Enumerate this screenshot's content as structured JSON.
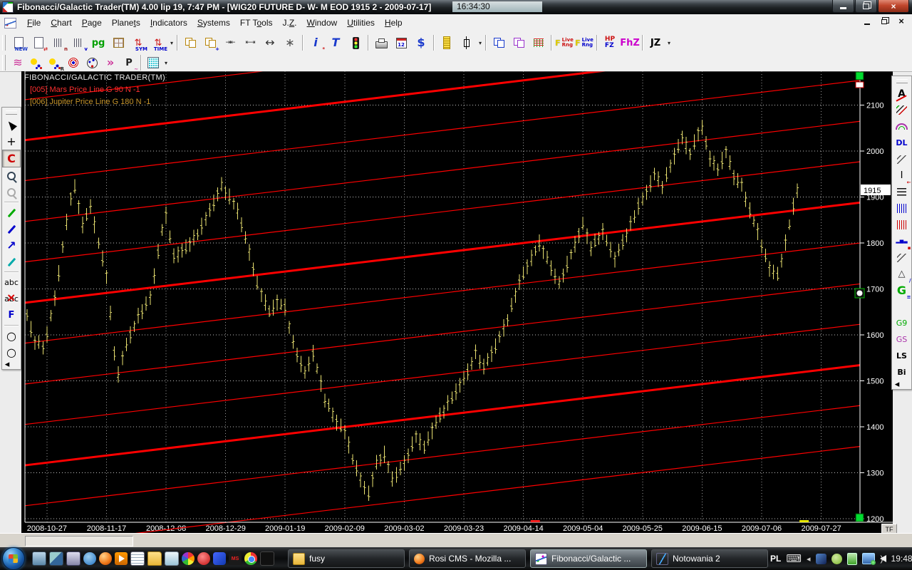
{
  "window": {
    "title": "Fibonacci/Galactic Trader(TM) 4.00 lip 19,  7:47 PM - [WIG20 FUTURE D- W- M EOD  1915     2 - 2009-07-17]",
    "clock": "16:34:30"
  },
  "menu": {
    "items": [
      {
        "name": "file",
        "pre": "",
        "u": "F",
        "post": "ile"
      },
      {
        "name": "chart",
        "pre": "",
        "u": "C",
        "post": "hart"
      },
      {
        "name": "page",
        "pre": "",
        "u": "P",
        "post": "age"
      },
      {
        "name": "planets",
        "pre": "Plane",
        "u": "t",
        "post": "s"
      },
      {
        "name": "indicators",
        "pre": "",
        "u": "I",
        "post": "ndicators"
      },
      {
        "name": "systems",
        "pre": "",
        "u": "S",
        "post": "ystems"
      },
      {
        "name": "ft-tools",
        "pre": "FT T",
        "u": "o",
        "post": "ols"
      },
      {
        "name": "jz",
        "pre": "J.",
        "u": "Z",
        "post": "."
      },
      {
        "name": "window",
        "pre": "",
        "u": "W",
        "post": "indow"
      },
      {
        "name": "utilities",
        "pre": "",
        "u": "U",
        "post": "tilities"
      },
      {
        "name": "help",
        "pre": "",
        "u": "H",
        "post": "elp"
      }
    ]
  },
  "toolbar1": {
    "groups": [
      [
        {
          "n": "new-page-button",
          "k": "page",
          "t": "NEW",
          "tc": "#1a3acc"
        },
        {
          "n": "page-swap-button",
          "k": "page",
          "t": "⇄",
          "tc": "#cc1111"
        },
        {
          "n": "bars-n-button",
          "k": "tbars",
          "t": "n",
          "tc": "#991111"
        },
        {
          "n": "bars-v-button",
          "k": "tbars",
          "t": "v",
          "tc": "#0000cc"
        },
        {
          "n": "pg-button",
          "g": "pg",
          "gc": "#00a000",
          "bold": 1
        },
        {
          "n": "page-grid-button",
          "k": "gridy"
        },
        {
          "n": "sym-button",
          "g": "⇅",
          "gc": "#cc1111",
          "t": "SYM",
          "tc": "#0000cc"
        },
        {
          "n": "time-button",
          "g": "⇅",
          "gc": "#cc1111",
          "t": "TIME",
          "tc": "#0000cc",
          "caret": 1
        }
      ],
      [
        {
          "n": "cascade-button",
          "k": "win",
          "gc": "#b8860b"
        },
        {
          "n": "new-window-button",
          "k": "win",
          "gc": "#b8860b",
          "t": "+",
          "tc": "#0000cc"
        },
        {
          "n": "compress-scale-button",
          "g": "⇥⇤",
          "gc": "#333333",
          "small": 1
        },
        {
          "n": "expand-scale-button",
          "g": "⇤⇥",
          "gc": "#333333",
          "small": 1
        },
        {
          "n": "pan-button",
          "g": "↔",
          "gc": "#333333",
          "big": 1
        },
        {
          "n": "center-button",
          "g": "∗",
          "gc": "#555555",
          "big": 1
        }
      ],
      [
        {
          "n": "info-button",
          "g": "i",
          "gc": "#1a3acc",
          "italic": 1,
          "bold": 1,
          "big": 1,
          "t": "*",
          "tc": "#cc1111"
        },
        {
          "n": "text-tool-button",
          "g": "T",
          "gc": "#1a3acc",
          "italic": 1,
          "bold": 1,
          "big": 1
        },
        {
          "n": "traffic-light-button",
          "k": "traffic"
        }
      ],
      [
        {
          "n": "print-button",
          "k": "printer"
        },
        {
          "n": "calendar-button",
          "k": "calendar",
          "g": "12"
        },
        {
          "n": "dollar-button",
          "g": "$",
          "gc": "#1a3acc",
          "bold": 1,
          "big": 1
        }
      ],
      [
        {
          "n": "ruler-button",
          "k": "ruler"
        },
        {
          "n": "bar-style-button",
          "k": "candle",
          "caret": 1
        }
      ],
      [
        {
          "n": "chart-window-button",
          "k": "win",
          "gc": "#1a3acc"
        },
        {
          "n": "chart-windows-button",
          "k": "win",
          "gc": "#9933cc"
        },
        {
          "n": "hash-grid-button",
          "k": "hashgrid"
        }
      ],
      [
        {
          "n": "live-range-red-button",
          "k": "livrng",
          "pre": "F",
          "lines": [
            "Live",
            "Rng"
          ],
          "lc": "#cc1111"
        },
        {
          "n": "live-range-blue-button",
          "k": "livrng",
          "pre": "F",
          "lines": [
            "Live",
            "Rng"
          ],
          "lc": "#0000cc"
        }
      ],
      [
        {
          "n": "hp-fz-button",
          "k": "stack2",
          "lines": [
            "HP",
            "FZ"
          ],
          "lcs": [
            "#cc1111",
            "#0000cc"
          ]
        },
        {
          "n": "fhz-button",
          "g": "FhZ",
          "gc": "#cc00cc",
          "bold": 1
        }
      ],
      [
        {
          "n": "jz-button",
          "g": "JZ",
          "gc": "#000000",
          "bold": 1,
          "caret": 1
        }
      ]
    ]
  },
  "toolbar2": {
    "groups": [
      [
        {
          "n": "planet-lines-button",
          "g": "≋",
          "gc": "#cc3399",
          "big": 1
        },
        {
          "n": "planets-button",
          "k": "sun"
        },
        {
          "n": "planets-retrograde-button",
          "k": "sun",
          "t": "R",
          "tc": "#222222"
        },
        {
          "n": "aspects-target-button",
          "k": "target"
        },
        {
          "n": "planet-wheel-button",
          "k": "orb"
        },
        {
          "n": "planet-arrows-button",
          "g": "»",
          "gc": "#cc3399",
          "bold": 1,
          "big": 1
        },
        {
          "n": "planet-p-button",
          "g": "P",
          "gc": "#222222",
          "bold": 1,
          "t": "~",
          "tc": "#cc3399"
        }
      ],
      [
        {
          "n": "ephemeris-grid-button",
          "k": "gridcyan",
          "caret": 1
        }
      ]
    ]
  },
  "left_palette": [
    {
      "grip": 1,
      "n": "left-palette-grip"
    },
    {
      "n": "pointer-tool",
      "k": "cursor"
    },
    {
      "n": "crosshair-tool",
      "g": "+",
      "gc": "#000000",
      "big": 1
    },
    {
      "n": "c-tool",
      "g": "C",
      "gc": "#cc0000",
      "bold": 1,
      "big": 1,
      "active": 1
    },
    {
      "n": "zoom-page-tool",
      "k": "magnifier"
    },
    {
      "n": "zoom-page-disabled-tool",
      "k": "magnifier",
      "disabled": 1
    },
    {
      "sep": 1
    },
    {
      "n": "pencil-green-tool",
      "k": "pen",
      "gc": "#00aa00"
    },
    {
      "n": "pencil-blue-tool",
      "k": "pen",
      "gc": "#0000cc"
    },
    {
      "n": "arrow-line-tool",
      "g": "↗",
      "gc": "#0000cc",
      "bold": 1,
      "big": 1
    },
    {
      "n": "pencil-cyan-tool",
      "k": "pen",
      "gc": "#00aaaa"
    },
    {
      "sep": 1
    },
    {
      "n": "text-abc-tool",
      "g": "abc",
      "gc": "#000000",
      "small2": 1
    },
    {
      "n": "delete-text-tool",
      "k": "abcx",
      "g": "abc",
      "gc": "#000000",
      "small2": 1
    },
    {
      "n": "fibonacci-f-tool",
      "g": "F",
      "gc": "#0000cc",
      "bold": 1
    },
    {
      "sep": 1
    },
    {
      "n": "ellipse-tool",
      "g": "○",
      "gc": "#000000",
      "big": 1
    },
    {
      "n": "ellipse-wide-tool",
      "g": "○",
      "gc": "#000000",
      "big": 1
    },
    {
      "n": "collapse-left-palette",
      "g": "◂",
      "gc": "#000000",
      "end": 1
    }
  ],
  "right_palette": [
    {
      "grip": 1,
      "n": "right-palette-grip"
    },
    {
      "n": "annotate-a-tool",
      "k": "ared",
      "g": "A",
      "gc": "#000000"
    },
    {
      "n": "trend-lines-tool",
      "k": "diag3"
    },
    {
      "n": "arcs-tool",
      "k": "arcs"
    },
    {
      "n": "dl-tool",
      "g": "DL",
      "gc": "#0000cc",
      "bold": 1,
      "small2": 1
    },
    {
      "n": "parallel-gray-tool",
      "k": "diag2"
    },
    {
      "n": "i-line-tool",
      "g": "I",
      "gc": "#000000",
      "t": "←",
      "tc": "#cc0000"
    },
    {
      "n": "hlines-tool",
      "k": "hlines"
    },
    {
      "n": "vlines-blue-tool",
      "k": "vlines",
      "gc": "#0000cc"
    },
    {
      "n": "vlines-red-tool",
      "k": "vlines",
      "gc": "#cc0000"
    },
    {
      "n": "minibars-tool",
      "g": "▂▅▃",
      "gc": "#0000cc",
      "tiny2": 1,
      "t": "▪",
      "tc": "#cc0000"
    },
    {
      "n": "parallel-2-tool",
      "k": "diag2"
    },
    {
      "n": "triangle-tool",
      "g": "△",
      "gc": "#333333",
      "t": "∕",
      "tc": "#0000cc"
    },
    {
      "n": "gann-g-tool",
      "g": "G",
      "gc": "#00aa00",
      "bold": 1,
      "big": 1,
      "t": "≡",
      "tc": "#0000cc"
    },
    {
      "n": "fan-tool",
      "k": "fan"
    },
    {
      "n": "g9-tool",
      "g": "G9",
      "gc": "#00aa00",
      "small2": 1
    },
    {
      "n": "gs-tool",
      "g": "GS",
      "gc": "#aa33aa",
      "small2": 1
    },
    {
      "n": "ls-tool",
      "g": "LS",
      "gc": "#000000",
      "bold": 1,
      "small2": 1
    },
    {
      "n": "bi-tool",
      "g": "Bi",
      "gc": "#000000",
      "bold": 1,
      "small2": 1
    },
    {
      "n": "collapse-right-palette",
      "g": "◂",
      "gc": "#000000",
      "end": 1
    }
  ],
  "chart": {
    "watermark": "FIBONACCI/GALACTIC TRADER(TM)",
    "legend": [
      {
        "label": "[005] Mars Price Line G 90 N -1",
        "color": "#ff3030"
      },
      {
        "label": "[006] Jupiter Price Line G 180 N -1",
        "color": "#c8962c"
      }
    ],
    "price_label": "1915",
    "tf": "TF",
    "colors": {
      "bar": "#e8e070",
      "planet_line": "#ff0000",
      "grid": "#bfbfbf",
      "axis_text": "#ffffff",
      "marker_green": "#00dc30"
    }
  },
  "chart_data": {
    "type": "ohlc-bar",
    "symbol": "WIG20 FUTURE",
    "timeframe": "D EOD",
    "last_price": 1915,
    "last_date": "2009-07-17",
    "ylim": [
      1192,
      2174
    ],
    "y_ticks": [
      2100,
      2000,
      1900,
      1800,
      1700,
      1600,
      1500,
      1400,
      1300,
      1200
    ],
    "x_ticks": [
      "2008-10-27",
      "2008-11-17",
      "2008-12-08",
      "2008-12-29",
      "2009-01-19",
      "2009-02-09",
      "2009-03-02",
      "2009-03-23",
      "2009-04-14",
      "2009-05-04",
      "2009-05-25",
      "2009-06-15",
      "2009-07-06",
      "2009-07-27"
    ],
    "bars_per_tick": 15,
    "first_tick_bar_index": 5,
    "bar_count": 195,
    "trend_points": [
      [
        0,
        1640
      ],
      [
        2,
        1585
      ],
      [
        4,
        1575
      ],
      [
        5,
        1600
      ],
      [
        7,
        1680
      ],
      [
        9,
        1790
      ],
      [
        11,
        1900
      ],
      [
        12,
        1920
      ],
      [
        14,
        1840
      ],
      [
        16,
        1880
      ],
      [
        18,
        1800
      ],
      [
        20,
        1730
      ],
      [
        22,
        1560
      ],
      [
        23,
        1515
      ],
      [
        25,
        1580
      ],
      [
        28,
        1640
      ],
      [
        31,
        1680
      ],
      [
        34,
        1830
      ],
      [
        35,
        1860
      ],
      [
        37,
        1770
      ],
      [
        40,
        1790
      ],
      [
        43,
        1820
      ],
      [
        46,
        1870
      ],
      [
        49,
        1925
      ],
      [
        51,
        1900
      ],
      [
        53,
        1870
      ],
      [
        56,
        1780
      ],
      [
        58,
        1710
      ],
      [
        61,
        1650
      ],
      [
        63,
        1670
      ],
      [
        65,
        1660
      ],
      [
        67,
        1580
      ],
      [
        70,
        1515
      ],
      [
        72,
        1560
      ],
      [
        75,
        1460
      ],
      [
        78,
        1410
      ],
      [
        80,
        1390
      ],
      [
        82,
        1330
      ],
      [
        85,
        1265
      ],
      [
        86,
        1255
      ],
      [
        88,
        1320
      ],
      [
        90,
        1340
      ],
      [
        92,
        1285
      ],
      [
        95,
        1320
      ],
      [
        98,
        1380
      ],
      [
        100,
        1355
      ],
      [
        103,
        1410
      ],
      [
        106,
        1450
      ],
      [
        109,
        1490
      ],
      [
        111,
        1520
      ],
      [
        113,
        1560
      ],
      [
        115,
        1530
      ],
      [
        118,
        1575
      ],
      [
        121,
        1635
      ],
      [
        124,
        1715
      ],
      [
        126,
        1750
      ],
      [
        129,
        1800
      ],
      [
        131,
        1765
      ],
      [
        134,
        1710
      ],
      [
        137,
        1775
      ],
      [
        140,
        1840
      ],
      [
        142,
        1790
      ],
      [
        145,
        1825
      ],
      [
        148,
        1765
      ],
      [
        151,
        1820
      ],
      [
        154,
        1880
      ],
      [
        156,
        1910
      ],
      [
        158,
        1950
      ],
      [
        160,
        1925
      ],
      [
        163,
        1990
      ],
      [
        165,
        2030
      ],
      [
        167,
        1995
      ],
      [
        169,
        2040
      ],
      [
        170,
        2050
      ],
      [
        172,
        1985
      ],
      [
        174,
        1960
      ],
      [
        176,
        2000
      ],
      [
        178,
        1945
      ],
      [
        180,
        1925
      ],
      [
        182,
        1870
      ],
      [
        184,
        1825
      ],
      [
        185,
        1795
      ],
      [
        187,
        1745
      ],
      [
        189,
        1730
      ],
      [
        191,
        1800
      ],
      [
        192,
        1840
      ],
      [
        193,
        1880
      ],
      [
        194,
        1915
      ]
    ],
    "planet_lines": {
      "rise_per_width": 218,
      "thick_left_prices": [
        2024,
        1670,
        1316
      ],
      "thin_left_prices": [
        2112,
        1936,
        1847,
        1759,
        1582,
        1493,
        1405,
        1228,
        1139
      ]
    },
    "axis_marks": [
      {
        "frac": 0.603,
        "color": "#ff2020"
      },
      {
        "frac": 0.925,
        "color": "#e8e800"
      }
    ]
  },
  "taskbar": {
    "quick": [
      "show-desktop",
      "switch-windows",
      "launcher",
      "ie",
      "firefox",
      "media-player",
      "notepad",
      "folder",
      "recycle",
      "photos",
      "opera",
      "bird",
      "ms",
      "chrome",
      "bat"
    ],
    "buttons": [
      {
        "label": "fusy",
        "icon": "folder",
        "active": false
      },
      {
        "label": "Rosi CMS - Mozilla ...",
        "icon": "firefox",
        "active": false
      },
      {
        "label": "Fibonacci/Galactic ...",
        "icon": "fgt",
        "active": true
      },
      {
        "label": "Notowania 2",
        "icon": "chart-app",
        "active": false
      }
    ],
    "tray": {
      "lang": "PL",
      "clock": "19:48",
      "icons": [
        "keyboard",
        "collapse",
        "app-blue",
        "clock-green",
        "battery",
        "network",
        "volume"
      ]
    }
  }
}
